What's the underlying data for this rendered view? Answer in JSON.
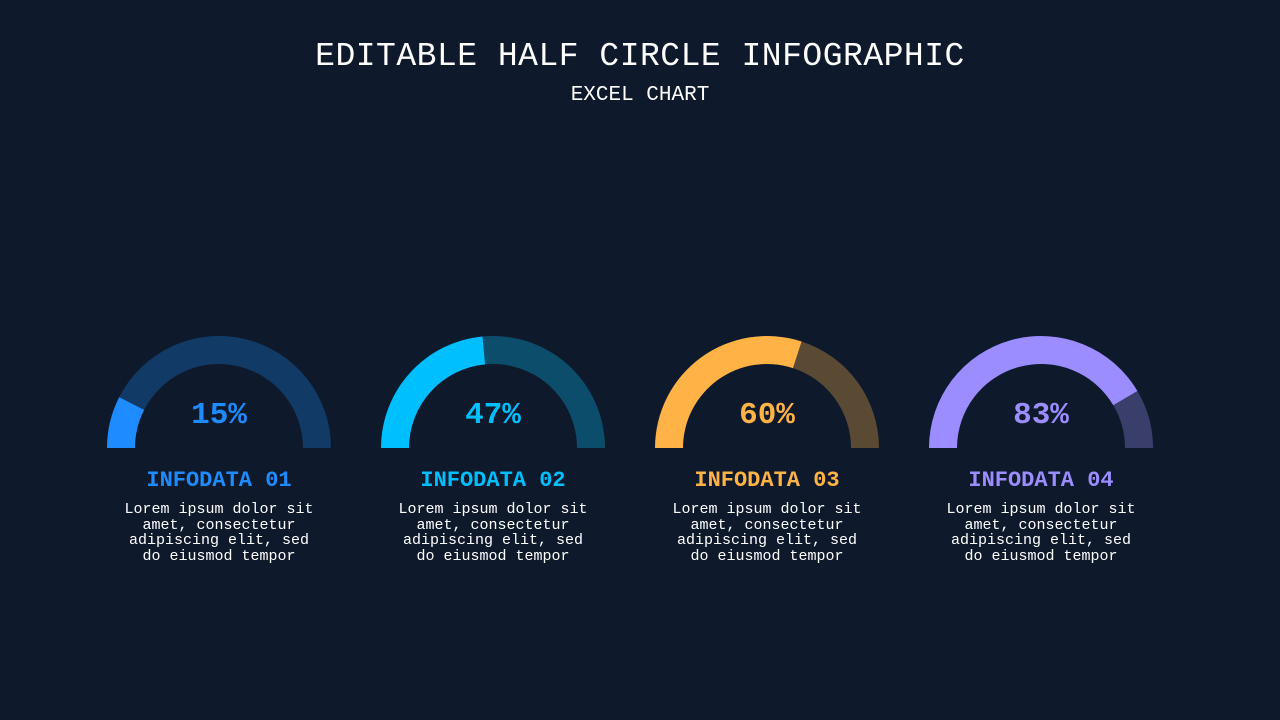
{
  "header": {
    "title": "EDITABLE HALF CIRCLE INFOGRAPHIC",
    "subtitle": "EXCEL CHART"
  },
  "chart_data": [
    {
      "type": "half-donut",
      "value": 15,
      "value_label": "15%",
      "label": "INFODATA 01",
      "description": "Lorem ipsum dolor sit amet, consectetur adipiscing elit, sed do eiusmod tempor",
      "color": "#1e8bff",
      "track_color": "#123a66"
    },
    {
      "type": "half-donut",
      "value": 47,
      "value_label": "47%",
      "label": "INFODATA 02",
      "description": "Lorem ipsum dolor sit amet, consectetur adipiscing elit, sed do eiusmod tempor",
      "color": "#00bfff",
      "track_color": "#0b4d6b"
    },
    {
      "type": "half-donut",
      "value": 60,
      "value_label": "60%",
      "label": "INFODATA 03",
      "description": "Lorem ipsum dolor sit amet, consectetur adipiscing elit, sed do eiusmod tempor",
      "color": "#ffb347",
      "track_color": "#5a4a33"
    },
    {
      "type": "half-donut",
      "value": 83,
      "value_label": "83%",
      "label": "INFODATA 04",
      "description": "Lorem ipsum dolor sit amet, consectetur adipiscing elit, sed do eiusmod tempor",
      "color": "#9b8cff",
      "track_color": "#3a3e6b"
    }
  ]
}
